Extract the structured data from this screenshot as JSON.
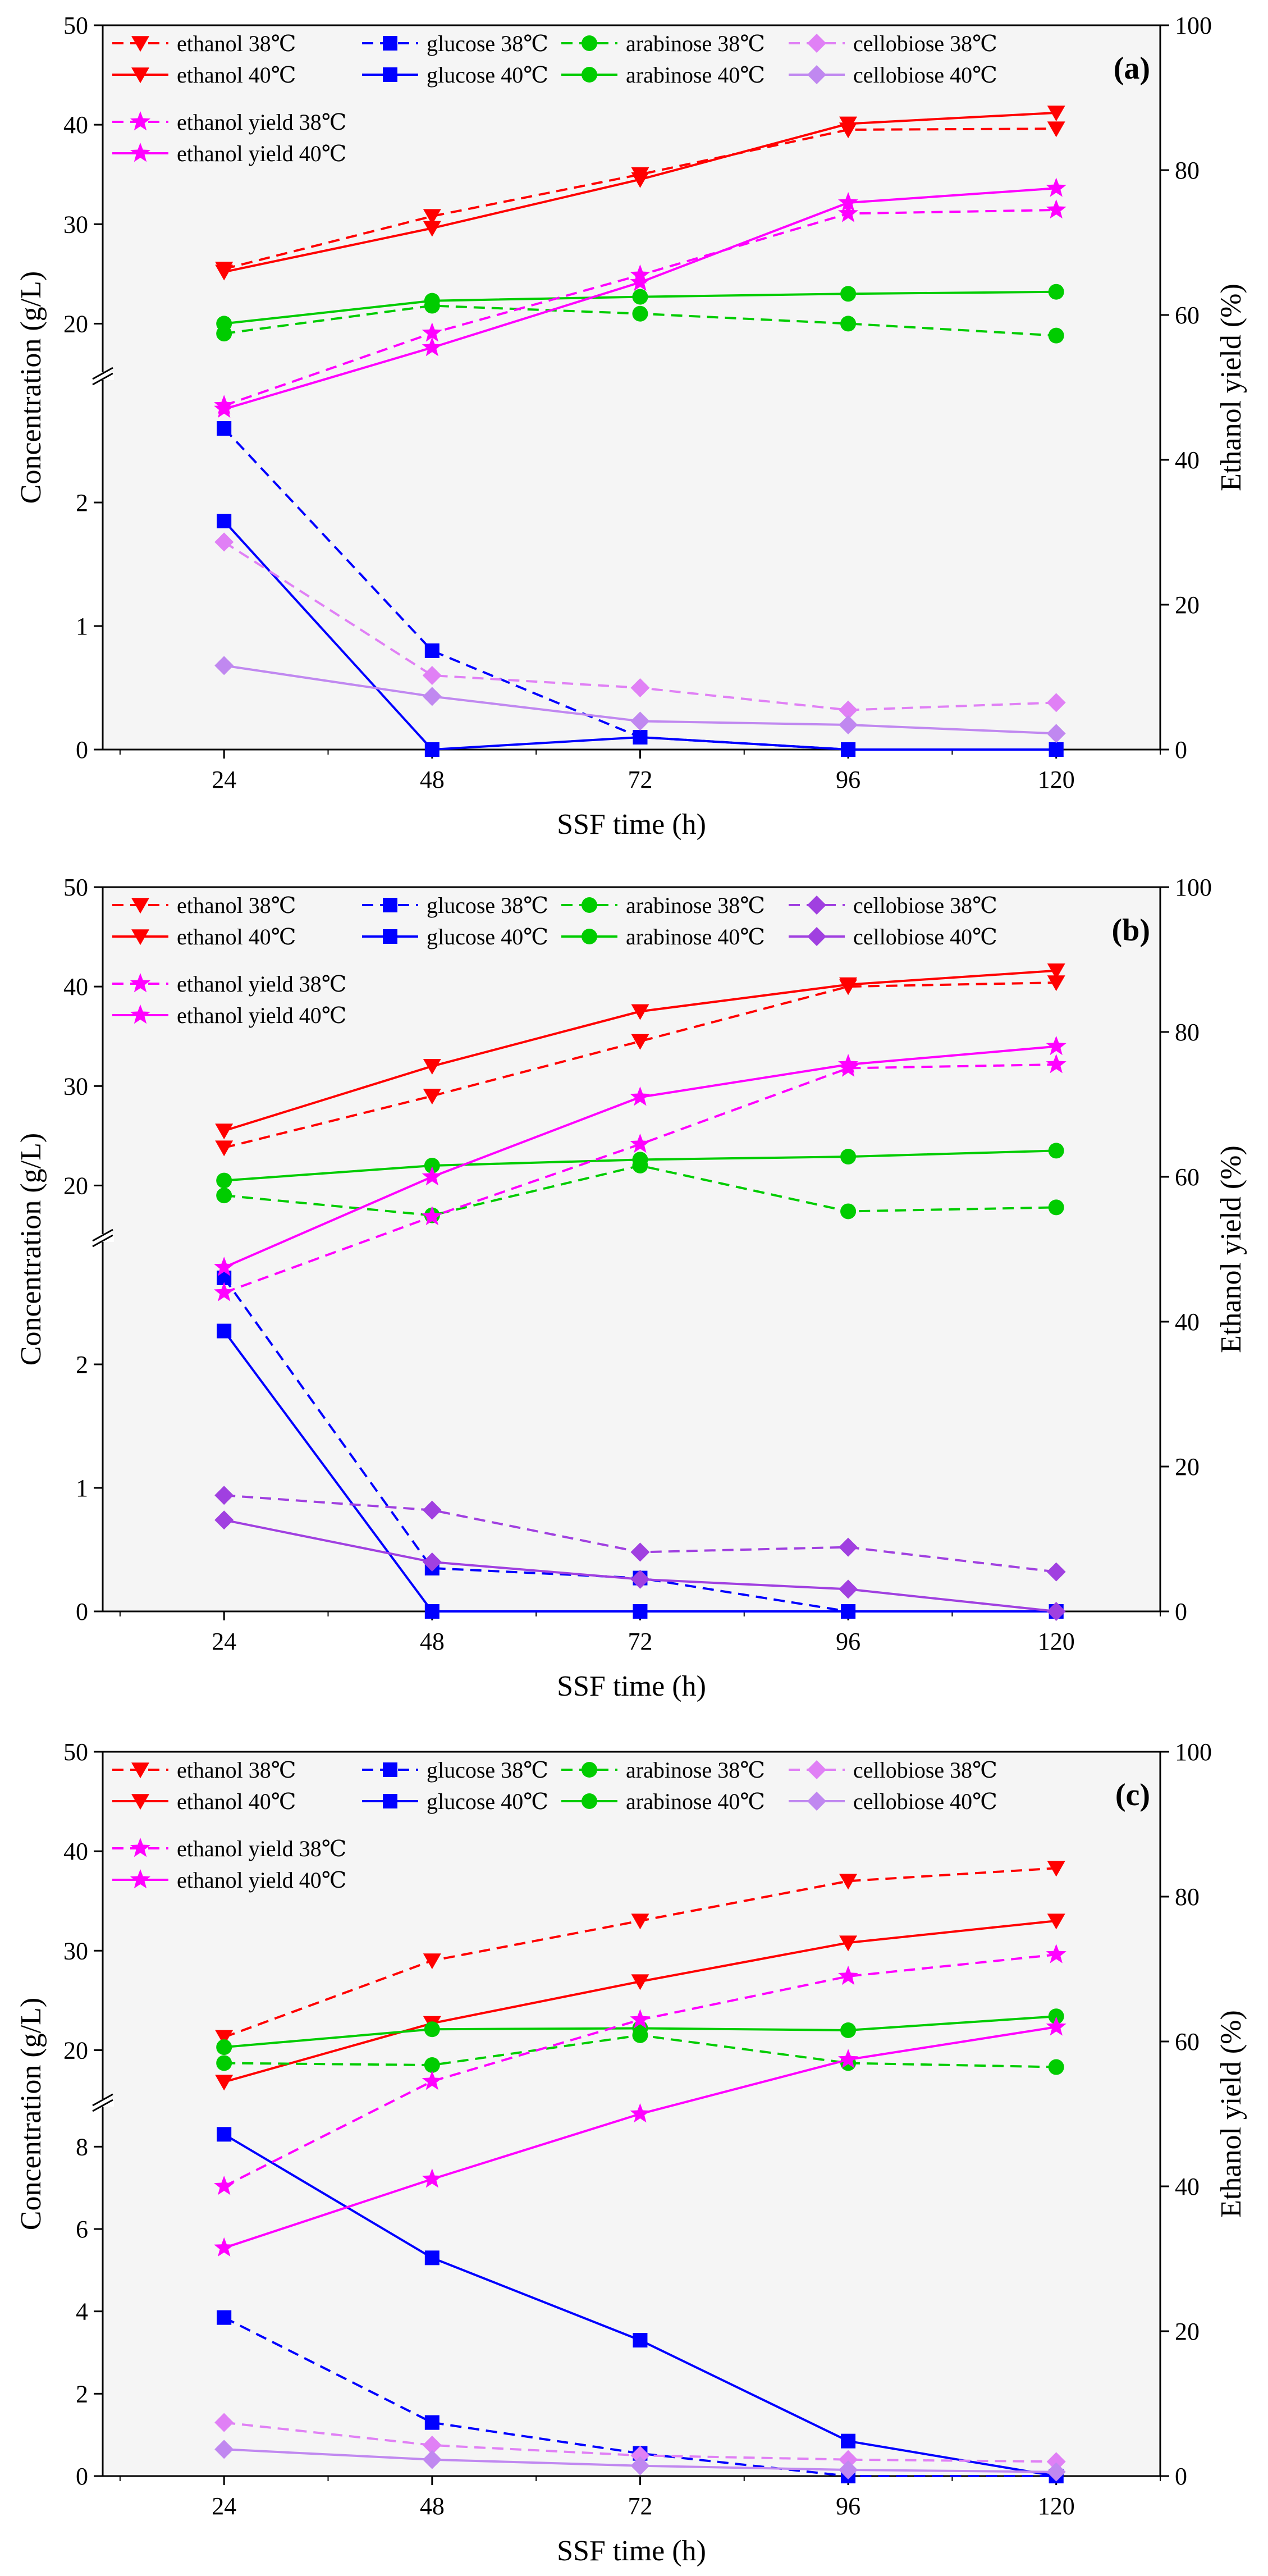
{
  "chart_data": [
    {
      "panel_label": "(a)",
      "type": "line",
      "xlabel": "SSF time (h)",
      "ylabel": "Concentration (g/L)",
      "y2label": "Ethanol yield (%)",
      "x": [
        24,
        48,
        72,
        96,
        120
      ],
      "x_ticks": [
        "24",
        "48",
        "72",
        "96",
        "120"
      ],
      "ylim_upper": [
        15,
        50
      ],
      "ylim_lower": [
        0,
        3
      ],
      "y_ticks_upper": [
        "20",
        "30",
        "40",
        "50"
      ],
      "y_ticks_lower": [
        "0",
        "1",
        "2"
      ],
      "y2lim": [
        0,
        100
      ],
      "y2_ticks": [
        "0",
        "20",
        "40",
        "60",
        "80",
        "100"
      ],
      "series": [
        {
          "name": "ethanol 38℃",
          "color": "#ff0000",
          "dash": true,
          "marker": "tri-down",
          "axis": "left",
          "values": [
            25.5,
            30.8,
            35.0,
            39.5,
            39.6
          ]
        },
        {
          "name": "ethanol 40℃",
          "color": "#ff0000",
          "dash": false,
          "marker": "tri-down",
          "axis": "left",
          "values": [
            25.2,
            29.6,
            34.5,
            40.1,
            41.2
          ]
        },
        {
          "name": "glucose 38℃",
          "color": "#0000ff",
          "dash": true,
          "marker": "square",
          "axis": "left",
          "values": [
            2.6,
            0.8,
            0.1,
            0.0,
            0.0
          ]
        },
        {
          "name": "glucose 40℃",
          "color": "#0000ff",
          "dash": false,
          "marker": "square",
          "axis": "left",
          "values": [
            1.85,
            0.0,
            0.1,
            0.0,
            0.0
          ]
        },
        {
          "name": "arabinose 38℃",
          "color": "#00cc00",
          "dash": true,
          "marker": "circle",
          "axis": "left",
          "values": [
            19.0,
            21.8,
            21.0,
            20.0,
            18.8
          ]
        },
        {
          "name": "arabinose 40℃",
          "color": "#00cc00",
          "dash": false,
          "marker": "circle",
          "axis": "left",
          "values": [
            20.0,
            22.3,
            22.7,
            23.0,
            23.2
          ]
        },
        {
          "name": "cellobiose 38℃",
          "color": "#e080f5",
          "dash": true,
          "marker": "diamond",
          "axis": "left",
          "values": [
            1.68,
            0.6,
            0.5,
            0.32,
            0.38
          ]
        },
        {
          "name": "cellobiose 40℃",
          "color": "#c088f0",
          "dash": false,
          "marker": "diamond",
          "axis": "left",
          "values": [
            0.68,
            0.43,
            0.23,
            0.2,
            0.13
          ]
        },
        {
          "name": "ethanol yield 38℃",
          "color": "#ff00ff",
          "dash": true,
          "marker": "star",
          "axis": "right",
          "values": [
            47.5,
            57.5,
            65.5,
            74.0,
            74.5
          ]
        },
        {
          "name": "ethanol yield 40℃",
          "color": "#ff00ff",
          "dash": false,
          "marker": "star",
          "axis": "right",
          "values": [
            47.0,
            55.5,
            64.5,
            75.5,
            77.5
          ]
        }
      ]
    },
    {
      "panel_label": "(b)",
      "type": "line",
      "xlabel": "SSF time (h)",
      "ylabel": "Concentration (g/L)",
      "y2label": "Ethanol yield (%)",
      "x": [
        24,
        48,
        72,
        96,
        120
      ],
      "x_ticks": [
        "24",
        "48",
        "72",
        "96",
        "120"
      ],
      "ylim_upper": [
        15,
        50
      ],
      "ylim_lower": [
        0,
        3
      ],
      "y_ticks_upper": [
        "20",
        "30",
        "40",
        "50"
      ],
      "y_ticks_lower": [
        "0",
        "1",
        "2"
      ],
      "y2lim": [
        0,
        100
      ],
      "y2_ticks": [
        "0",
        "20",
        "40",
        "60",
        "80",
        "100"
      ],
      "series": [
        {
          "name": "ethanol 38℃",
          "color": "#ff0000",
          "dash": true,
          "marker": "tri-down",
          "axis": "left",
          "values": [
            23.8,
            29.0,
            34.5,
            40.0,
            40.4
          ]
        },
        {
          "name": "ethanol 40℃",
          "color": "#ff0000",
          "dash": false,
          "marker": "tri-down",
          "axis": "left",
          "values": [
            25.5,
            32.0,
            37.5,
            40.2,
            41.6
          ]
        },
        {
          "name": "glucose 38℃",
          "color": "#0000ff",
          "dash": true,
          "marker": "square",
          "axis": "left",
          "values": [
            2.7,
            0.35,
            0.27,
            0.0,
            0.0
          ]
        },
        {
          "name": "glucose 40℃",
          "color": "#0000ff",
          "dash": false,
          "marker": "square",
          "axis": "left",
          "values": [
            2.27,
            0.0,
            0.0,
            0.0,
            0.0
          ]
        },
        {
          "name": "arabinose 38℃",
          "color": "#00cc00",
          "dash": true,
          "marker": "circle",
          "axis": "left",
          "values": [
            19.0,
            17.0,
            22.0,
            17.4,
            17.8
          ]
        },
        {
          "name": "arabinose 40℃",
          "color": "#00cc00",
          "dash": false,
          "marker": "circle",
          "axis": "left",
          "values": [
            20.5,
            22.0,
            22.6,
            22.9,
            23.5
          ]
        },
        {
          "name": "cellobiose 38℃",
          "color": "#a040e0",
          "dash": true,
          "marker": "diamond",
          "axis": "left",
          "values": [
            0.94,
            0.82,
            0.48,
            0.52,
            0.32
          ]
        },
        {
          "name": "cellobiose 40℃",
          "color": "#a040e0",
          "dash": false,
          "marker": "diamond",
          "axis": "left",
          "values": [
            0.74,
            0.4,
            0.26,
            0.18,
            0.0
          ]
        },
        {
          "name": "ethanol yield 38℃",
          "color": "#ff00ff",
          "dash": true,
          "marker": "star",
          "axis": "right",
          "values": [
            44.0,
            54.5,
            64.5,
            75.0,
            75.5
          ]
        },
        {
          "name": "ethanol yield 40℃",
          "color": "#ff00ff",
          "dash": false,
          "marker": "star",
          "axis": "right",
          "values": [
            47.5,
            60.0,
            71.0,
            75.5,
            78.0
          ]
        }
      ]
    },
    {
      "panel_label": "(c)",
      "type": "line",
      "xlabel": "SSF time (h)",
      "ylabel": "Concentration (g/L)",
      "y2label": "Ethanol yield (%)",
      "x": [
        24,
        48,
        72,
        96,
        120
      ],
      "x_ticks": [
        "24",
        "48",
        "72",
        "96",
        "120"
      ],
      "ylim_upper": [
        15,
        50
      ],
      "ylim_lower": [
        0,
        9
      ],
      "y_ticks_upper": [
        "20",
        "30",
        "40",
        "50"
      ],
      "y_ticks_lower": [
        "0",
        "2",
        "4",
        "6",
        "8"
      ],
      "y2lim": [
        0,
        100
      ],
      "y2_ticks": [
        "0",
        "20",
        "40",
        "60",
        "80",
        "100"
      ],
      "series": [
        {
          "name": "ethanol 38℃",
          "color": "#ff0000",
          "dash": true,
          "marker": "tri-down",
          "axis": "left",
          "values": [
            21.3,
            29.0,
            33.0,
            37.0,
            38.3
          ]
        },
        {
          "name": "ethanol 40℃",
          "color": "#ff0000",
          "dash": false,
          "marker": "tri-down",
          "axis": "left",
          "values": [
            16.8,
            22.7,
            26.9,
            30.8,
            33.0
          ]
        },
        {
          "name": "glucose 38℃",
          "color": "#0000ff",
          "dash": true,
          "marker": "square",
          "axis": "left",
          "values": [
            3.85,
            1.3,
            0.55,
            0.0,
            0.0
          ]
        },
        {
          "name": "glucose 40℃",
          "color": "#0000ff",
          "dash": false,
          "marker": "square",
          "axis": "left",
          "values": [
            8.3,
            5.3,
            3.3,
            0.85,
            0.0
          ]
        },
        {
          "name": "arabinose 38℃",
          "color": "#00cc00",
          "dash": true,
          "marker": "circle",
          "axis": "left",
          "values": [
            18.7,
            18.5,
            21.5,
            18.7,
            18.3
          ]
        },
        {
          "name": "arabinose 40℃",
          "color": "#00cc00",
          "dash": false,
          "marker": "circle",
          "axis": "left",
          "values": [
            20.3,
            22.1,
            22.2,
            22.0,
            23.4
          ]
        },
        {
          "name": "cellobiose 38℃",
          "color": "#e080f5",
          "dash": true,
          "marker": "diamond",
          "axis": "left",
          "values": [
            1.3,
            0.75,
            0.5,
            0.4,
            0.35
          ]
        },
        {
          "name": "cellobiose 40℃",
          "color": "#c088f0",
          "dash": false,
          "marker": "diamond",
          "axis": "left",
          "values": [
            0.65,
            0.4,
            0.25,
            0.15,
            0.1
          ]
        },
        {
          "name": "ethanol yield 38℃",
          "color": "#ff00ff",
          "dash": true,
          "marker": "star",
          "axis": "right",
          "values": [
            40.0,
            54.5,
            63.0,
            69.0,
            72.0
          ]
        },
        {
          "name": "ethanol yield 40℃",
          "color": "#ff00ff",
          "dash": false,
          "marker": "star",
          "axis": "right",
          "values": [
            31.5,
            41.0,
            50.0,
            57.5,
            62.0
          ]
        }
      ]
    }
  ]
}
